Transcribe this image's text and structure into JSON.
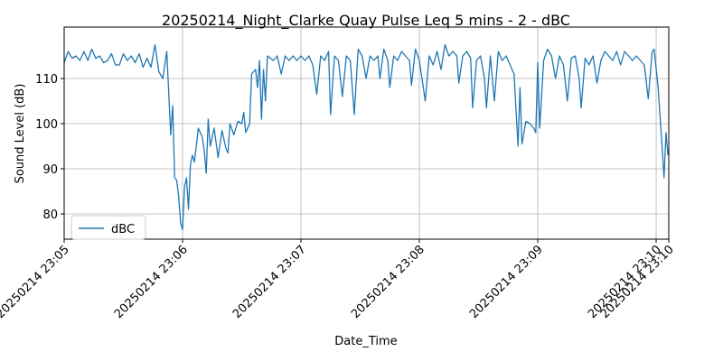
{
  "chart_data": {
    "type": "line",
    "title": "20250214_Night_Clarke Quay Pulse Leq 5 mins - 2 - dBC",
    "x_label": "Date_Time",
    "y_label": "Sound Level (dB)",
    "x": [
      0,
      2,
      4,
      6,
      8,
      10,
      12,
      14,
      16,
      18,
      20,
      22,
      24,
      26,
      28,
      30,
      32,
      34,
      36,
      38,
      40,
      42,
      44,
      46,
      48,
      50,
      52,
      54,
      55,
      56,
      57,
      58,
      59,
      60,
      61,
      62,
      63,
      64,
      65,
      66,
      68,
      70,
      71,
      72,
      73,
      74,
      76,
      78,
      80,
      82,
      83,
      84,
      86,
      88,
      90,
      91,
      92,
      94,
      95,
      97,
      98,
      99,
      100,
      101,
      102,
      103,
      106,
      108,
      110,
      112,
      114,
      116,
      118,
      120,
      122,
      124,
      126,
      128,
      130,
      132,
      134,
      135,
      137,
      139,
      141,
      143,
      145,
      147,
      149,
      151,
      153,
      155,
      157,
      159,
      160,
      162,
      164,
      165,
      167,
      169,
      171,
      173,
      175,
      176,
      178,
      180,
      183,
      185,
      187,
      189,
      191,
      193,
      195,
      197,
      199,
      200,
      202,
      204,
      206,
      207,
      209,
      211,
      213,
      214,
      216,
      218,
      220,
      222,
      224,
      226,
      228,
      230,
      231,
      232,
      234,
      236,
      238,
      239,
      240,
      241,
      243,
      245,
      247,
      249,
      251,
      253,
      255,
      257,
      259,
      261,
      262,
      264,
      266,
      268,
      270,
      272,
      274,
      276,
      278,
      280,
      282,
      284,
      286,
      288,
      290,
      292,
      294,
      296,
      298,
      299,
      301,
      303,
      304,
      305,
      306
    ],
    "series": [
      {
        "name": "dBC",
        "color": "#1f77b4",
        "values": [
          113.5,
          116,
          114.5,
          115,
          114,
          116,
          114,
          116.5,
          114.5,
          115,
          113.5,
          114,
          115.5,
          113,
          113,
          115.5,
          114,
          115,
          113.5,
          115.5,
          112.5,
          114.5,
          112.5,
          117.5,
          111.5,
          110,
          116,
          97.5,
          104,
          88,
          87.5,
          84,
          78,
          76.5,
          86,
          88,
          81,
          91,
          93,
          91.5,
          99,
          97,
          94,
          89,
          101,
          95,
          99,
          92.5,
          98.5,
          94.5,
          93.5,
          100,
          97.5,
          100.5,
          100,
          102.5,
          98,
          100,
          111,
          112,
          108,
          114,
          101,
          112,
          105,
          115,
          114,
          115,
          111,
          115,
          114,
          115,
          114,
          115,
          114,
          115,
          113,
          106.5,
          115,
          114,
          116,
          102,
          115,
          114,
          106,
          115,
          114,
          102,
          116.5,
          115,
          110,
          115,
          114,
          115,
          110,
          116.5,
          114,
          108,
          115,
          114,
          116,
          115,
          114,
          108.5,
          116.5,
          114,
          105,
          115,
          113,
          116,
          112,
          117.5,
          115,
          116,
          115,
          109,
          115,
          116,
          114.5,
          103.5,
          114,
          115,
          110,
          103.5,
          115,
          105,
          116,
          114,
          115,
          113,
          111,
          95,
          108,
          95.5,
          100.5,
          100,
          99,
          98,
          113.5,
          99,
          114,
          116.5,
          115,
          110,
          115,
          113,
          105,
          114.5,
          115,
          110,
          103.5,
          114.5,
          113,
          115,
          109,
          114,
          116,
          115,
          114,
          116,
          113,
          116,
          115,
          114,
          115,
          114,
          113,
          105.5,
          116,
          116.5,
          108,
          95,
          88,
          98,
          93
        ]
      }
    ],
    "xlim": [
      0,
      306.4
    ],
    "xticks": [
      {
        "value": 0,
        "label": "20250214 23:05"
      },
      {
        "value": 60,
        "label": "20250214 23:06"
      },
      {
        "value": 120,
        "label": "20250214 23:07"
      },
      {
        "value": 180,
        "label": "20250214 23:08"
      },
      {
        "value": 240,
        "label": "20250214 23:09"
      },
      {
        "value": 300,
        "label": "20250214 23:10"
      },
      {
        "value": 306.4,
        "label": "20250214 23:10"
      }
    ],
    "ylim": [
      74.4,
      121.4
    ],
    "yticks": [
      80,
      90,
      100,
      110
    ],
    "grid": true,
    "legend": "lower left"
  }
}
